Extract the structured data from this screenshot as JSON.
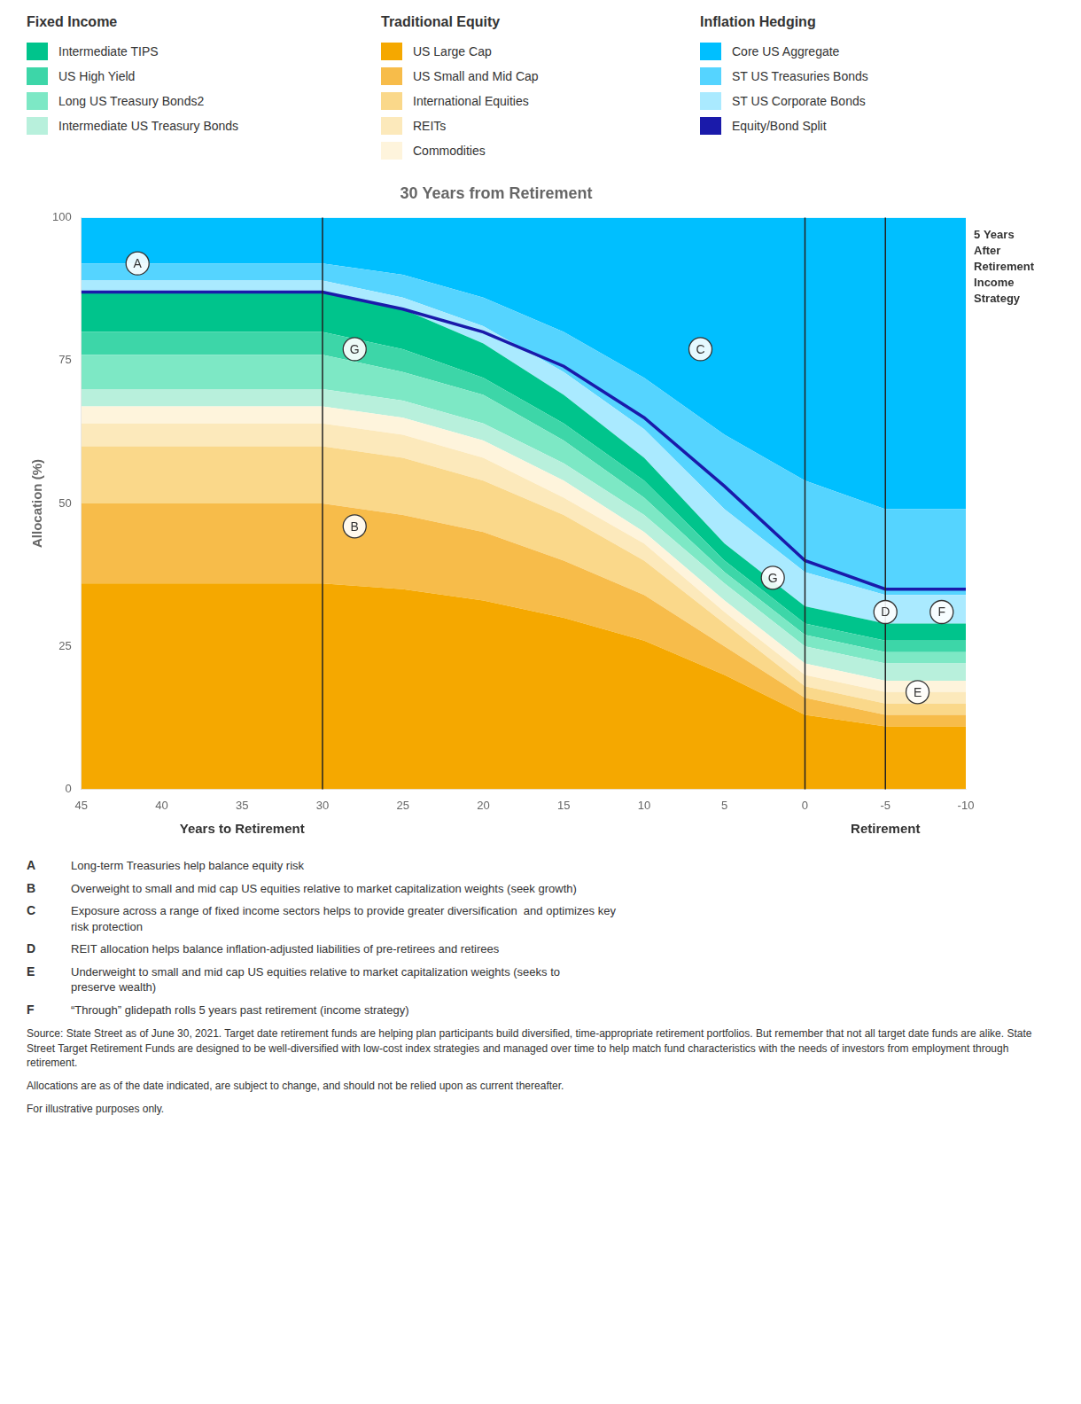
{
  "chart_data": {
    "type": "area",
    "stacked": true,
    "title": "30 Years from Retirement",
    "ylabel": "Allocation (%)",
    "x_labels": [
      {
        "text": "Years to Retirement",
        "x": 35
      },
      {
        "text": "Retirement",
        "x": -5
      }
    ],
    "x": [
      45,
      40,
      35,
      30,
      25,
      20,
      15,
      10,
      5,
      0,
      -5,
      -10
    ],
    "xlim": [
      45,
      -10
    ],
    "xticks": [
      45,
      40,
      35,
      30,
      25,
      20,
      15,
      10,
      5,
      0,
      -5,
      -10
    ],
    "ylim": [
      0,
      100
    ],
    "yticks": [
      0,
      25,
      50,
      75,
      100
    ],
    "grid": false,
    "series": [
      {
        "name": "US Large Cap",
        "type": "area",
        "color": "#F5A800",
        "values": [
          36,
          36,
          36,
          36,
          35,
          33,
          30,
          26,
          20,
          13,
          11,
          11
        ]
      },
      {
        "name": "US Small and Mid Cap",
        "type": "area",
        "color": "#F7BC4A",
        "values": [
          14,
          14,
          14,
          14,
          13,
          12,
          10,
          8,
          5,
          3,
          2,
          2
        ]
      },
      {
        "name": "International Equities",
        "type": "area",
        "color": "#FAD88A",
        "values": [
          10,
          10,
          10,
          10,
          10,
          9,
          8,
          6,
          4,
          2,
          2,
          2
        ]
      },
      {
        "name": "REITs",
        "type": "area",
        "color": "#FCE9BB",
        "values": [
          4,
          4,
          4,
          4,
          4,
          4,
          3,
          3,
          2,
          2,
          2,
          2
        ]
      },
      {
        "name": "Commodities",
        "type": "area",
        "color": "#FEF4DC",
        "values": [
          3,
          3,
          3,
          3,
          3,
          3,
          3,
          2,
          2,
          2,
          2,
          2
        ]
      },
      {
        "name": "Intermediate US Treasury Bonds",
        "type": "area",
        "color": "#B8F0DC",
        "values": [
          3,
          3,
          3,
          3,
          3,
          3,
          3,
          3,
          3,
          3,
          3,
          3
        ]
      },
      {
        "name": "Long US Treasury Bonds2",
        "type": "area",
        "color": "#7DE8C5",
        "values": [
          6,
          6,
          6,
          6,
          5,
          5,
          4,
          3,
          2,
          2,
          2,
          2
        ]
      },
      {
        "name": "US High Yield",
        "type": "area",
        "color": "#3DD6A8",
        "values": [
          4,
          4,
          4,
          4,
          4,
          3,
          3,
          3,
          2,
          2,
          2,
          2
        ]
      },
      {
        "name": "Intermediate TIPS",
        "type": "area",
        "color": "#00C48C",
        "values": [
          7,
          7,
          7,
          7,
          7,
          6,
          5,
          4,
          3,
          3,
          3,
          3
        ]
      },
      {
        "name": "ST US Corporate Bonds",
        "type": "area",
        "color": "#AAEAFF",
        "values": [
          2,
          2,
          2,
          2,
          2,
          3,
          4,
          5,
          6,
          6,
          5,
          5
        ]
      },
      {
        "name": "ST US Treasuries Bonds",
        "type": "area",
        "color": "#55D4FF",
        "values": [
          3,
          3,
          3,
          3,
          4,
          5,
          7,
          9,
          13,
          16,
          15,
          15
        ]
      },
      {
        "name": "Core US Aggregate",
        "type": "area",
        "color": "#00BFFF",
        "values": [
          8,
          8,
          8,
          8,
          10,
          14,
          20,
          28,
          38,
          46,
          51,
          51
        ]
      },
      {
        "name": "Equity/Bond Split",
        "type": "line",
        "color": "#1a1aaa",
        "values": [
          87,
          87,
          87,
          87,
          84,
          80,
          74,
          65,
          53,
          40,
          35,
          35
        ]
      }
    ],
    "legend_groups": [
      {
        "title": "Fixed Income",
        "items": [
          "Intermediate TIPS",
          "US High Yield",
          "Long US Treasury Bonds2",
          "Intermediate US Treasury Bonds"
        ]
      },
      {
        "title": "Traditional Equity",
        "items": [
          "US Large Cap",
          "US Small and Mid Cap",
          "International Equities",
          "REITs",
          "Commodities"
        ]
      },
      {
        "title": "Inflation Hedging",
        "items": [
          "Core US Aggregate",
          "ST US Treasuries Bonds",
          "ST US Corporate Bonds",
          "Equity/Bond Split"
        ]
      }
    ],
    "vlines": [
      30,
      0,
      -5
    ],
    "retirement_label": {
      "text": "5 Years\nAfter\nRetirement\nIncome\nStrategy",
      "x": -10.5,
      "y": 98
    },
    "annotations": [
      {
        "text": "A",
        "x": 41.5,
        "y": 92
      },
      {
        "text": "G",
        "x": 28,
        "y": 77
      },
      {
        "text": "B",
        "x": 28,
        "y": 46
      },
      {
        "text": "C",
        "x": 6.5,
        "y": 77
      },
      {
        "text": "G",
        "x": 2,
        "y": 37
      },
      {
        "text": "D",
        "x": -5,
        "y": 31
      },
      {
        "text": "E",
        "x": -7,
        "y": 17
      },
      {
        "text": "F",
        "x": -8.5,
        "y": 31
      }
    ],
    "notes": [
      {
        "letter": "A",
        "text": "Long-term Treasuries help balance equity risk"
      },
      {
        "letter": "B",
        "text": "Overweight to small and mid cap US equities relative to market capitalization weights (seek growth)"
      },
      {
        "letter": "C",
        "text": "Exposure across a range of fixed income sectors helps to provide greater diversification  and optimizes key\nrisk protection"
      },
      {
        "letter": "D",
        "text": "REIT allocation helps balance inflation-adjusted liabilities of pre-retirees and retirees"
      },
      {
        "letter": "E",
        "text": "Underweight to small and mid cap US equities relative to market capitalization weights (seeks to\npreserve wealth)"
      },
      {
        "letter": "F",
        "text": "“Through” glidepath rolls 5 years past retirement (income strategy)"
      }
    ],
    "source_text": "Source: State Street as of June 30, 2021. Target date retirement funds are helping plan participants build diversified, time-appropriate retirement portfolios. But remember that not all target date funds are alike. State Street Target Retirement Funds are designed to be well-diversified with low-cost index strategies and managed over time to help match fund characteristics with the needs of investors from employment through retirement.",
    "disclaimers": [
      "Allocations are as of the date indicated, are subject to change, and should not be relied upon as current thereafter.",
      "For illustrative purposes only."
    ]
  }
}
